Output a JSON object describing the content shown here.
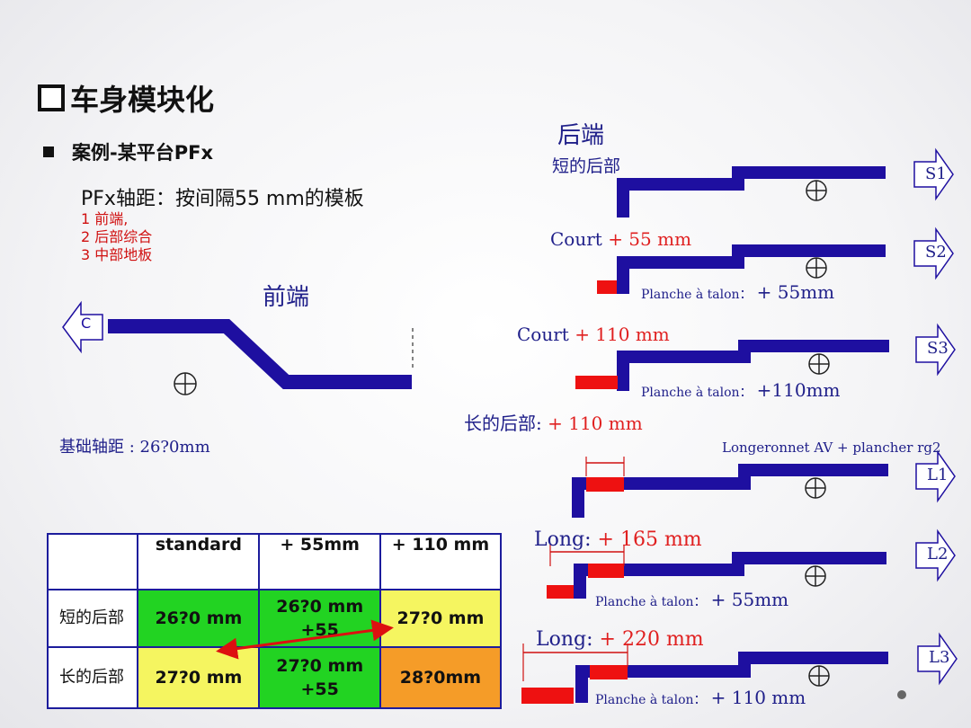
{
  "title": "车身模块化",
  "subtitle": "案例-某平台PFx",
  "desc": "PFx轴距：按间隔55 mm的模板",
  "list": [
    "1  前端,",
    "2 后部综合",
    "3 中部地板"
  ],
  "front": {
    "label": "前端",
    "c": "C",
    "base": "基础轴距 : 26?0mm"
  },
  "rear": {
    "label": "后端",
    "short": "短的后部",
    "s2_a": "Court",
    "s2_b": "+ 55 mm",
    "s2_p": "Planche à talon：",
    "s2_v": "+ 55mm",
    "s3_a": "Court",
    "s3_b": "+ 110 mm",
    "s3_p": "Planche à talon：",
    "s3_v": "+110mm",
    "long": "长的后部:",
    "long_v": "+ 110 mm",
    "l1_t": "Longeronnet AV + plancher rg2",
    "l2_a": "Long:",
    "l2_b": "+ 165 mm",
    "l2_p": "Planche à talon：",
    "l2_v": "+ 55mm",
    "l3_a": "Long:",
    "l3_b": "+ 220 mm",
    "l3_p": "Planche à talon：",
    "l3_v": "+ 110 mm",
    "tags": [
      "S1",
      "S2",
      "S3",
      "L1",
      "L2",
      "L3"
    ]
  },
  "table": {
    "headers": [
      "",
      "standard",
      "+ 55mm",
      "+ 110 mm"
    ],
    "rows": [
      {
        "label": "短的后部",
        "cells": [
          "26?0 mm",
          "26?0 mm +55",
          "27?0 mm"
        ]
      },
      {
        "label": "长的后部",
        "cells": [
          "27?0 mm",
          "27?0 mm +55",
          "28?0mm"
        ]
      }
    ]
  },
  "colors": {
    "navy": "#1e0fa0",
    "red": "#ee1111",
    "green": "#22d322",
    "yellow": "#f5f560",
    "orange": "#f59c28"
  }
}
